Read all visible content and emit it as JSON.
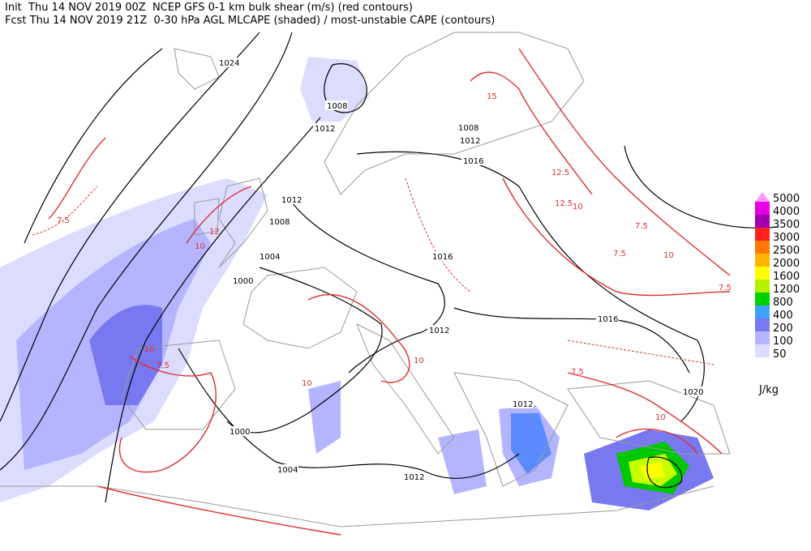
{
  "header": {
    "line1": "Init  Thu 14 NOV 2019 00Z  NCEP GFS 0-1 km bulk shear (m/s) (red contours)",
    "line2": "Fcst Thu 14 NOV 2019 21Z  0-30 hPa AGL MLCAPE (shaded) / most-unstable CAPE (contours)"
  },
  "legend": {
    "levels": [
      5000,
      4000,
      3500,
      3000,
      2500,
      2000,
      1600,
      1200,
      800,
      400,
      200,
      100,
      50
    ],
    "unit": "J/kg"
  },
  "pressure_labels": [
    1024,
    1008,
    1012,
    1008,
    1012,
    1016,
    1012,
    1008,
    1004,
    1000,
    1016,
    1012,
    1016,
    1020,
    1012,
    1000,
    1004,
    1012
  ],
  "shear_labels": [
    7.5,
    10,
    12,
    10,
    7.5,
    15,
    12.5,
    12.5,
    10,
    7.5,
    7.5,
    10,
    7.5,
    10,
    7.5,
    10,
    10
  ]
}
